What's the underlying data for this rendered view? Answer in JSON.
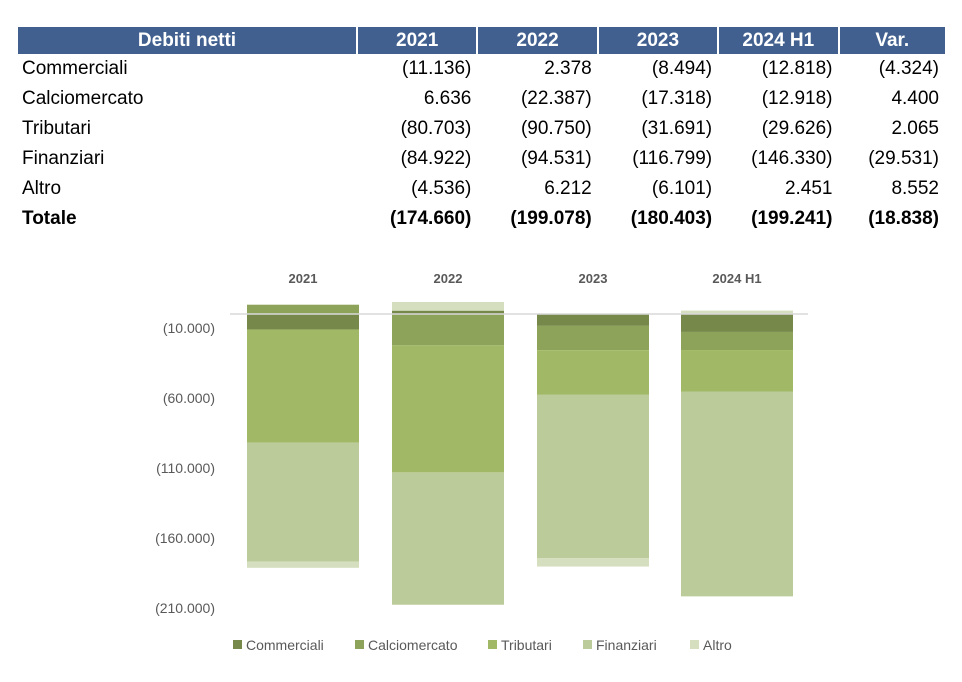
{
  "table": {
    "headers": [
      "Debiti netti",
      "2021",
      "2022",
      "2023",
      "2024 H1",
      "Var."
    ],
    "rows": [
      [
        "Commerciali",
        "(11.136)",
        "2.378",
        "(8.494)",
        "(12.818)",
        "(4.324)"
      ],
      [
        "Calciomercato",
        "6.636",
        "(22.387)",
        "(17.318)",
        "(12.918)",
        "4.400"
      ],
      [
        "Tributari",
        "(80.703)",
        "(90.750)",
        "(31.691)",
        "(29.626)",
        "2.065"
      ],
      [
        "Finanziari",
        "(84.922)",
        "(94.531)",
        "(116.799)",
        "(146.330)",
        "(29.531)"
      ],
      [
        "Altro",
        "(4.536)",
        "6.212",
        "(6.101)",
        "2.451",
        "8.552"
      ],
      [
        "Totale",
        "(174.660)",
        "(199.078)",
        "(180.403)",
        "(199.241)",
        "(18.838)"
      ]
    ]
  },
  "chart_data": {
    "type": "stacked-bar",
    "categories": [
      "2021",
      "2022",
      "2023",
      "2024 H1"
    ],
    "series": [
      {
        "name": "Commerciali",
        "color": "#77894a",
        "values": [
          -11136,
          2378,
          -8494,
          -12818
        ]
      },
      {
        "name": "Calciomercato",
        "color": "#8ea35a",
        "values": [
          6636,
          -22387,
          -17318,
          -12918
        ]
      },
      {
        "name": "Tributari",
        "color": "#a1b966",
        "values": [
          -80703,
          -90750,
          -31691,
          -29626
        ]
      },
      {
        "name": "Finanziari",
        "color": "#bccb9a",
        "values": [
          -84922,
          -94531,
          -116799,
          -146330
        ]
      },
      {
        "name": "Altro",
        "color": "#d5dfc0",
        "values": [
          -4536,
          6212,
          -6101,
          2451
        ]
      }
    ],
    "yticks": [
      -10000,
      -60000,
      -110000,
      -160000,
      -210000
    ],
    "ytick_labels": [
      "(10.000)",
      "(60.000)",
      "(110.000)",
      "(160.000)",
      "(210.000)"
    ],
    "legend_position": "bottom",
    "grid": false
  }
}
